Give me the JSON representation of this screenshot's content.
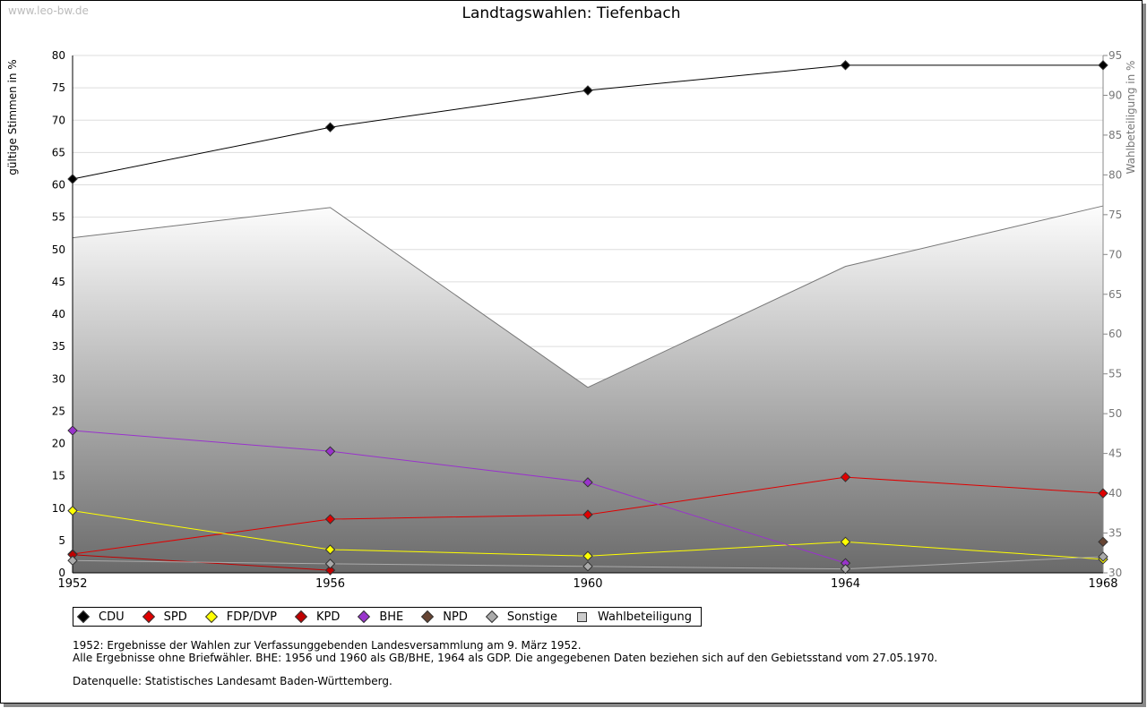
{
  "watermark": "www.leo-bw.de",
  "notes": [
    "1952: Ergebnisse der Wahlen zur Verfassunggebenden Landesversammlung am 9. März 1952.",
    "Alle Ergebnisse ohne Briefwähler. BHE: 1956 und 1960 als GB/BHE, 1964 als GDP. Die angegebenen Daten beziehen sich auf den Gebietsstand vom 27.05.1970.",
    "Datenquelle: Statistisches Landesamt Baden-Württemberg."
  ],
  "chart_data": {
    "type": "line",
    "title": "Landtagswahlen: Tiefenbach",
    "ylabel": "gültige Stimmen in %",
    "y2label": "Wahlbeteiligung in %",
    "x": [
      1952,
      1956,
      1960,
      1964,
      1968
    ],
    "ylim": [
      0,
      80
    ],
    "yticks": [
      0,
      5,
      10,
      15,
      20,
      25,
      30,
      35,
      40,
      45,
      50,
      55,
      60,
      65,
      70,
      75,
      80
    ],
    "y2lim": [
      30,
      95
    ],
    "y2ticks": [
      30,
      35,
      40,
      45,
      50,
      55,
      60,
      65,
      70,
      75,
      80,
      85,
      90,
      95
    ],
    "grid": true,
    "legend_position": "bottom",
    "series": [
      {
        "name": "CDU",
        "color": "#000000",
        "values": [
          60.9,
          68.9,
          74.6,
          78.5,
          78.5
        ]
      },
      {
        "name": "SPD",
        "color": "#e00000",
        "values": [
          2.9,
          8.3,
          9.0,
          14.8,
          12.3
        ]
      },
      {
        "name": "FDP/DVP",
        "color": "#ffff00",
        "values": [
          9.6,
          3.6,
          2.6,
          4.8,
          2.1
        ]
      },
      {
        "name": "KPD",
        "color": "#c00000",
        "values": [
          2.8,
          0.4,
          null,
          null,
          null
        ]
      },
      {
        "name": "BHE",
        "color": "#9933cc",
        "values": [
          22.0,
          18.8,
          14.0,
          1.5,
          null
        ]
      },
      {
        "name": "NPD",
        "color": "#664433",
        "values": [
          null,
          null,
          null,
          null,
          4.8
        ]
      },
      {
        "name": "Sonstige",
        "color": "#aaaaaa",
        "values": [
          1.9,
          1.4,
          1.0,
          0.6,
          2.5
        ]
      }
    ],
    "turnout": {
      "name": "Wahlbeteiligung",
      "color": "#cccccc",
      "axis": "right",
      "values": [
        72.1,
        75.9,
        53.3,
        68.5,
        76.1
      ]
    }
  }
}
